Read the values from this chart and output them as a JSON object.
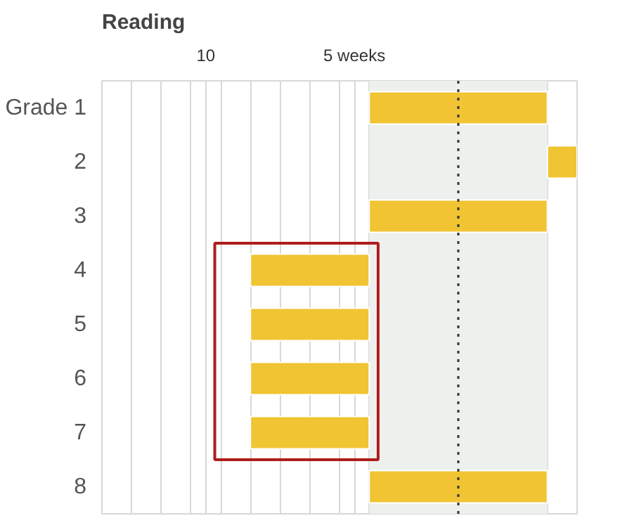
{
  "chart_data": {
    "type": "bar",
    "orientation": "horizontal",
    "title": "Reading",
    "categories": [
      "Grade 1",
      "2",
      "3",
      "4",
      "5",
      "6",
      "7",
      "8"
    ],
    "base": [
      4.5,
      -1.5,
      4.5,
      8.5,
      8.5,
      8.5,
      8.5,
      4.5
    ],
    "values": [
      -6,
      -1,
      -6,
      -4,
      -4,
      -4,
      -4,
      -6
    ],
    "color": "#f0c433",
    "xlim": [
      13.5,
      -2.5
    ],
    "xticks": [
      {
        "value": 13.5,
        "label": null
      },
      {
        "value": 12.5,
        "label": null
      },
      {
        "value": 11.5,
        "label": null
      },
      {
        "value": 10.5,
        "label": null
      },
      10,
      {
        "value": 9.5,
        "label": null
      },
      {
        "value": 8.5,
        "label": null
      },
      {
        "value": 7.5,
        "label": null
      },
      {
        "value": 6.5,
        "label": null
      },
      {
        "value": 5,
        "label": "5 weeks"
      },
      {
        "value": 5.5,
        "label": null
      },
      {
        "value": 4.5,
        "label": null
      },
      {
        "value": 3.5,
        "label": null
      },
      {
        "value": 2.5,
        "label": null
      },
      {
        "value": 1.5,
        "label": null
      },
      {
        "value": 0.5,
        "label": null
      },
      {
        "value": -0.5,
        "label": null
      },
      {
        "value": -1.5,
        "label": null
      },
      {
        "value": -2.5,
        "label": null
      }
    ],
    "grid": "x",
    "bands": [
      {
        "axis": "x",
        "from": 4.5,
        "to": -1.5,
        "color": "#eef0ee"
      }
    ],
    "ref_lines": [
      {
        "axis": "x",
        "value": 1.5,
        "line_style": "dotted",
        "color": "#333333"
      }
    ]
  }
}
